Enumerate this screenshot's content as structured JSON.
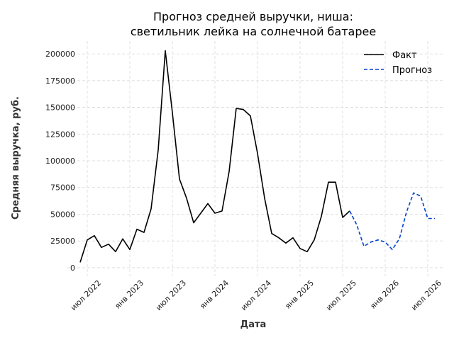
{
  "chart_data": {
    "type": "line",
    "title_line1": "Прогноз средней выручки, ниша:",
    "title_line2": "светильник лейка на солнечной батарее",
    "xlabel": "Дата",
    "ylabel": "Средняя выручка, руб.",
    "x_ticks": [
      "июл 2022",
      "янв 2023",
      "июл 2023",
      "янв 2024",
      "июл 2024",
      "янв 2025",
      "июл 2025",
      "янв 2026",
      "июл 2026"
    ],
    "y_ticks": [
      "0",
      "25000",
      "50000",
      "75000",
      "100000",
      "125000",
      "150000",
      "175000",
      "200000"
    ],
    "ylim": [
      -8000,
      212000
    ],
    "grid": true,
    "legend_position": "top-right",
    "series": [
      {
        "name": "Факт",
        "color": "#000000",
        "style": "solid",
        "x": [
          "2022-06",
          "2022-07",
          "2022-08",
          "2022-09",
          "2022-10",
          "2022-11",
          "2022-12",
          "2023-01",
          "2023-02",
          "2023-03",
          "2023-04",
          "2023-05",
          "2023-06",
          "2023-07",
          "2023-08",
          "2023-09",
          "2023-10",
          "2023-11",
          "2023-12",
          "2024-01",
          "2024-02",
          "2024-03",
          "2024-04",
          "2024-05",
          "2024-06",
          "2024-07",
          "2024-08",
          "2024-09",
          "2024-10",
          "2024-11",
          "2024-12",
          "2025-01",
          "2025-02",
          "2025-03",
          "2025-04",
          "2025-05",
          "2025-06",
          "2025-07",
          "2025-08"
        ],
        "values": [
          5000,
          26000,
          30000,
          19000,
          22000,
          15000,
          27000,
          17000,
          36000,
          33000,
          55000,
          110000,
          203000,
          145000,
          83000,
          65000,
          42000,
          51000,
          60000,
          51000,
          53000,
          90000,
          149000,
          148000,
          142000,
          107000,
          65000,
          32000,
          28000,
          23000,
          28000,
          18000,
          15000,
          26000,
          48000,
          80000,
          80000,
          47000,
          53000
        ]
      },
      {
        "name": "Прогноз",
        "color": "#0044cc",
        "style": "dashed",
        "x": [
          "2025-08",
          "2025-09",
          "2025-10",
          "2025-11",
          "2025-12",
          "2026-01",
          "2026-02",
          "2026-03",
          "2026-04",
          "2026-05",
          "2026-06",
          "2026-07",
          "2026-08"
        ],
        "values": [
          53000,
          40000,
          20000,
          24000,
          26000,
          24000,
          17000,
          27000,
          52000,
          70000,
          67000,
          46000,
          46000
        ]
      }
    ]
  }
}
